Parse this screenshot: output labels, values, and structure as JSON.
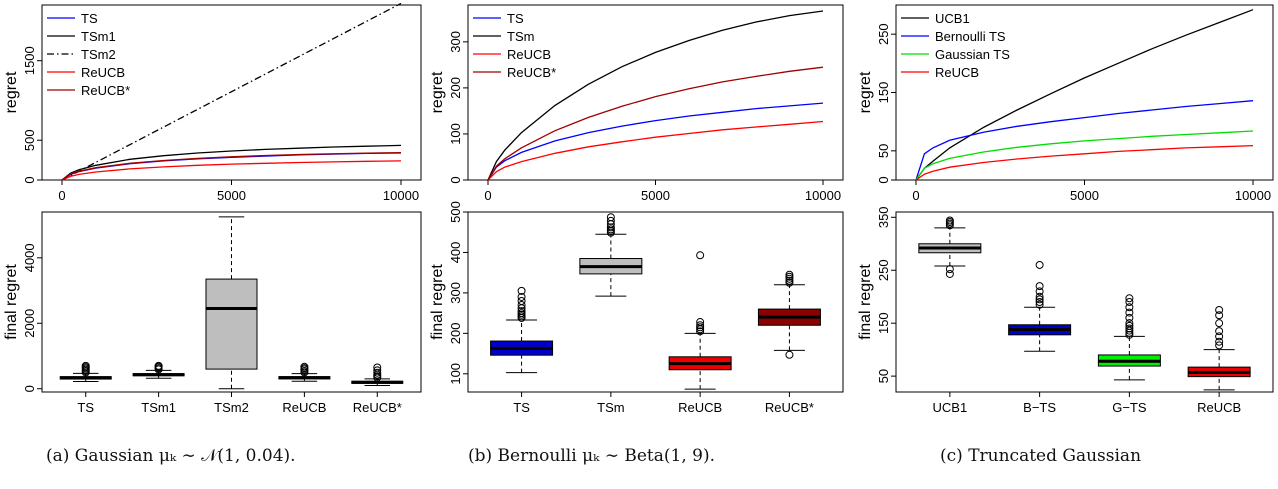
{
  "captions": [
    "(a) Gaussian μₖ ∼ 𝒩(1, 0.04).",
    "(b) Bernoulli μₖ ∼ Beta(1, 9).",
    "(c) Truncated Gaussian"
  ],
  "chart_data": [
    {
      "type": "line",
      "panel": "a-top",
      "ylabel": "regret",
      "xlabel": "",
      "xlim": [
        0,
        10000
      ],
      "ylim": [
        0,
        2200
      ],
      "xticks": [
        "0",
        "5000",
        "10000"
      ],
      "xtick_values": [
        0,
        5000,
        10000
      ],
      "yticks": [
        "0",
        "500",
        "1500"
      ],
      "ytick_values": [
        0,
        500,
        1500
      ],
      "legend_position": "top-left",
      "series": [
        {
          "name": "TS",
          "color": "#0000ff",
          "dash": "",
          "x": [
            0,
            250,
            500,
            1000,
            2000,
            3000,
            4000,
            5000,
            6000,
            7000,
            8000,
            9000,
            10000
          ],
          "y": [
            0,
            70,
            105,
            150,
            205,
            240,
            265,
            285,
            300,
            315,
            325,
            335,
            340
          ]
        },
        {
          "name": "TSm1",
          "color": "#000000",
          "dash": "",
          "x": [
            0,
            250,
            500,
            1000,
            2000,
            3000,
            4000,
            5000,
            6000,
            7000,
            8000,
            9000,
            10000
          ],
          "y": [
            0,
            85,
            130,
            185,
            260,
            305,
            340,
            365,
            385,
            400,
            415,
            425,
            435
          ]
        },
        {
          "name": "TSm2",
          "color": "#000000",
          "dash": "7 3 1.5 3",
          "x": [
            0,
            10000
          ],
          "y": [
            0,
            2220
          ]
        },
        {
          "name": "ReUCB",
          "color": "#ff0000",
          "dash": "",
          "x": [
            0,
            250,
            500,
            1000,
            2000,
            3000,
            4000,
            5000,
            6000,
            7000,
            8000,
            9000,
            10000
          ],
          "y": [
            0,
            45,
            70,
            100,
            140,
            165,
            185,
            200,
            210,
            220,
            228,
            235,
            240
          ]
        },
        {
          "name": "ReUCB*",
          "color": "#a00000",
          "dash": "",
          "x": [
            0,
            250,
            500,
            1000,
            2000,
            3000,
            4000,
            5000,
            6000,
            7000,
            8000,
            9000,
            10000
          ],
          "y": [
            0,
            75,
            110,
            155,
            210,
            245,
            272,
            292,
            308,
            320,
            330,
            338,
            345
          ]
        }
      ]
    },
    {
      "type": "line",
      "panel": "b-top",
      "ylabel": "regret",
      "xlabel": "",
      "xlim": [
        0,
        10000
      ],
      "ylim": [
        0,
        380
      ],
      "xticks": [
        "0",
        "5000",
        "10000"
      ],
      "xtick_values": [
        0,
        5000,
        10000
      ],
      "yticks": [
        "0",
        "100",
        "200",
        "300"
      ],
      "ytick_values": [
        0,
        100,
        200,
        300
      ],
      "legend_position": "top-left",
      "series": [
        {
          "name": "TS",
          "color": "#0000ff",
          "dash": "",
          "x": [
            0,
            250,
            500,
            1000,
            2000,
            3000,
            4000,
            5000,
            6000,
            7000,
            8000,
            9000,
            10000
          ],
          "y": [
            0,
            28,
            42,
            60,
            85,
            103,
            117,
            129,
            139,
            147,
            155,
            161,
            167
          ]
        },
        {
          "name": "TSm",
          "color": "#000000",
          "dash": "",
          "x": [
            0,
            250,
            500,
            1000,
            2000,
            3000,
            4000,
            5000,
            6000,
            7000,
            8000,
            9000,
            10000
          ],
          "y": [
            0,
            40,
            65,
            103,
            162,
            208,
            246,
            277,
            303,
            325,
            343,
            357,
            367
          ]
        },
        {
          "name": "ReUCB",
          "color": "#ff0000",
          "dash": "",
          "x": [
            0,
            250,
            500,
            1000,
            2000,
            3000,
            4000,
            5000,
            6000,
            7000,
            8000,
            9000,
            10000
          ],
          "y": [
            0,
            18,
            28,
            40,
            58,
            72,
            83,
            93,
            101,
            109,
            115,
            121,
            127
          ]
        },
        {
          "name": "ReUCB*",
          "color": "#a00000",
          "dash": "",
          "x": [
            0,
            250,
            500,
            1000,
            2000,
            3000,
            4000,
            5000,
            6000,
            7000,
            8000,
            9000,
            10000
          ],
          "y": [
            0,
            30,
            46,
            70,
            107,
            136,
            160,
            181,
            198,
            213,
            225,
            236,
            245
          ]
        }
      ]
    },
    {
      "type": "line",
      "panel": "c-top",
      "ylabel": "regret",
      "xlabel": "",
      "xlim": [
        0,
        10000
      ],
      "ylim": [
        0,
        300
      ],
      "xticks": [
        "0",
        "5000",
        "10000"
      ],
      "xtick_values": [
        0,
        5000,
        10000
      ],
      "yticks": [
        "0",
        "50",
        "150",
        "250"
      ],
      "ytick_values": [
        0,
        50,
        150,
        250
      ],
      "legend_position": "top-left",
      "series": [
        {
          "name": "UCB1",
          "color": "#000000",
          "dash": "",
          "x": [
            0,
            250,
            500,
            1000,
            2000,
            3000,
            4000,
            5000,
            6000,
            7000,
            8000,
            9000,
            10000
          ],
          "y": [
            0,
            20,
            32,
            55,
            90,
            120,
            148,
            175,
            200,
            225,
            248,
            270,
            292
          ]
        },
        {
          "name": "Bernoulli TS",
          "color": "#0000ff",
          "dash": "",
          "x": [
            0,
            250,
            500,
            1000,
            2000,
            3000,
            4000,
            5000,
            6000,
            7000,
            8000,
            9000,
            10000
          ],
          "y": [
            0,
            45,
            55,
            68,
            82,
            92,
            100,
            107,
            114,
            120,
            126,
            131,
            136
          ]
        },
        {
          "name": "Gaussian TS",
          "color": "#00dd00",
          "dash": "",
          "x": [
            0,
            250,
            500,
            1000,
            2000,
            3000,
            4000,
            5000,
            6000,
            7000,
            8000,
            9000,
            10000
          ],
          "y": [
            0,
            20,
            28,
            37,
            48,
            56,
            62,
            67,
            71,
            75,
            78,
            81,
            84
          ]
        },
        {
          "name": "ReUCB",
          "color": "#ff0000",
          "dash": "",
          "x": [
            0,
            250,
            500,
            1000,
            2000,
            3000,
            4000,
            5000,
            6000,
            7000,
            8000,
            9000,
            10000
          ],
          "y": [
            0,
            10,
            15,
            22,
            30,
            36,
            41,
            45,
            49,
            52,
            55,
            57,
            59
          ]
        }
      ]
    },
    {
      "type": "box",
      "panel": "a-bottom",
      "ylabel": "final regret",
      "xlabel": "",
      "ylim": [
        -100,
        5400
      ],
      "yticks": [
        "0",
        "2000",
        "4000"
      ],
      "ytick_values": [
        0,
        2000,
        4000
      ],
      "categories": [
        "TS",
        "TSm1",
        "TSm2",
        "ReUCB",
        "ReUCB*"
      ],
      "boxes": [
        {
          "fill": "#bebebe",
          "whisker_low": 220,
          "q1": 295,
          "median": 330,
          "q3": 370,
          "whisker_high": 470,
          "outliers": [
            500,
            540,
            580,
            620,
            660,
            700
          ]
        },
        {
          "fill": "#bebebe",
          "whisker_low": 320,
          "q1": 395,
          "median": 430,
          "q3": 460,
          "whisker_high": 560,
          "outliers": [
            590,
            630,
            670,
            700
          ]
        },
        {
          "fill": "#bebebe",
          "whisker_low": 0,
          "q1": 600,
          "median": 2450,
          "q3": 3350,
          "whisker_high": 5250,
          "outliers": []
        },
        {
          "fill": "#bebebe",
          "whisker_low": 230,
          "q1": 300,
          "median": 335,
          "q3": 370,
          "whisker_high": 460,
          "outliers": [
            500,
            540,
            590,
            630,
            670
          ]
        },
        {
          "fill": "#bebebe",
          "whisker_low": 100,
          "q1": 165,
          "median": 195,
          "q3": 230,
          "whisker_high": 300,
          "outliers": [
            340,
            380,
            430,
            490,
            560,
            650
          ]
        }
      ]
    },
    {
      "type": "box",
      "panel": "b-bottom",
      "ylabel": "final regret",
      "xlabel": "",
      "ylim": [
        55,
        500
      ],
      "yticks": [
        "100",
        "200",
        "300",
        "400",
        "500"
      ],
      "ytick_values": [
        100,
        200,
        300,
        400,
        500
      ],
      "categories": [
        "TS",
        "TSm",
        "ReUCB",
        "ReUCB*"
      ],
      "boxes": [
        {
          "fill": "#0000cd",
          "whisker_low": 103,
          "q1": 146,
          "median": 163,
          "q3": 181,
          "whisker_high": 233,
          "outliers": [
            238,
            242,
            246,
            250,
            255,
            262,
            270,
            280,
            290,
            305
          ]
        },
        {
          "fill": "#bebebe",
          "whisker_low": 292,
          "q1": 347,
          "median": 365,
          "q3": 385,
          "whisker_high": 445,
          "outliers": [
            449,
            453,
            457,
            462,
            470,
            478,
            487
          ]
        },
        {
          "fill": "#ee0000",
          "whisker_low": 62,
          "q1": 110,
          "median": 125,
          "q3": 142,
          "whisker_high": 200,
          "outliers": [
            205,
            210,
            215,
            220,
            228,
            393
          ]
        },
        {
          "fill": "#8b0000",
          "whisker_low": 158,
          "q1": 220,
          "median": 240,
          "q3": 260,
          "whisker_high": 320,
          "outliers": [
            147,
            325,
            330,
            335,
            340,
            345
          ]
        }
      ]
    },
    {
      "type": "box",
      "panel": "c-bottom",
      "ylabel": "final regret",
      "xlabel": "",
      "ylim": [
        20,
        360
      ],
      "yticks": [
        "50",
        "150",
        "250",
        "350"
      ],
      "ytick_values": [
        50,
        150,
        250,
        350
      ],
      "categories": [
        "UCB1",
        "B−TS",
        "G−TS",
        "ReUCB"
      ],
      "boxes": [
        {
          "fill": "#bebebe",
          "whisker_low": 258,
          "q1": 283,
          "median": 292,
          "q3": 300,
          "whisker_high": 330,
          "outliers": [
            243,
            252,
            335,
            338,
            341,
            344
          ]
        },
        {
          "fill": "#0000cd",
          "whisker_low": 97,
          "q1": 128,
          "median": 138,
          "q3": 147,
          "whisker_high": 180,
          "outliers": [
            185,
            190,
            195,
            200,
            210,
            220,
            260
          ]
        },
        {
          "fill": "#00ee00",
          "whisker_low": 43,
          "q1": 69,
          "median": 78,
          "q3": 90,
          "whisker_high": 125,
          "outliers": [
            128,
            132,
            136,
            140,
            145,
            150,
            160,
            170,
            180,
            190,
            197
          ]
        },
        {
          "fill": "#ee0000",
          "whisker_low": 24,
          "q1": 49,
          "median": 57,
          "q3": 67,
          "whisker_high": 100,
          "outliers": [
            108,
            115,
            125,
            135,
            150,
            165,
            175
          ]
        }
      ]
    }
  ]
}
